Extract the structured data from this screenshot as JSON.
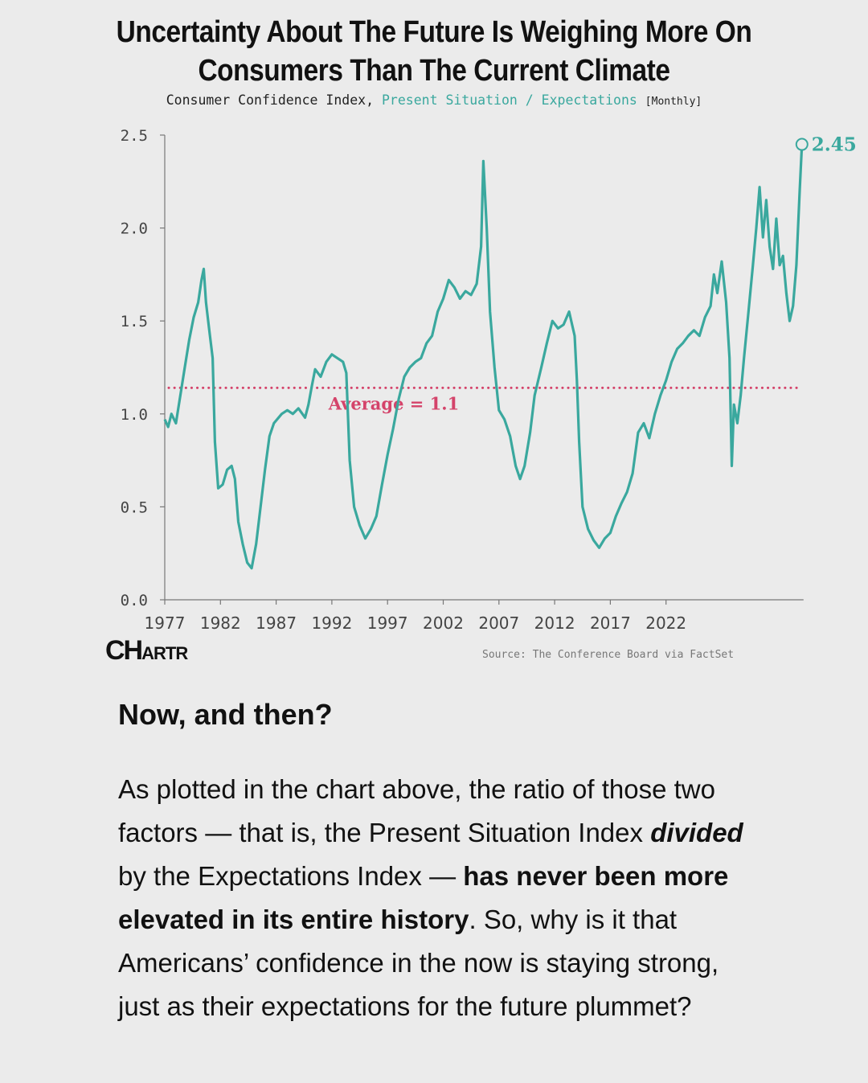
{
  "chart_data": {
    "type": "line",
    "title": "Uncertainty About The Future Is Weighing More On Consumers Than The Current Climate",
    "subtitle_prefix": "Consumer Confidence Index,",
    "subtitle_series": "Present Situation / Expectations",
    "subtitle_frequency": "[Monthly]",
    "ylim": [
      0,
      2.5
    ],
    "yticks": [
      0.0,
      0.5,
      1.0,
      1.5,
      2.0,
      2.5
    ],
    "ytick_labels": [
      "0.0",
      "0.5",
      "1.0",
      "1.5",
      "2.0",
      "2.5"
    ],
    "xticks": [
      "1977",
      "1982",
      "1987",
      "1992",
      "1997",
      "2002",
      "2007",
      "2012",
      "2017",
      "2022"
    ],
    "series": [
      {
        "color": "#3aa89e",
        "points": [
          [
            1977.0,
            0.97
          ],
          [
            1977.3,
            0.93
          ],
          [
            1977.6,
            1.0
          ],
          [
            1978.0,
            0.95
          ],
          [
            1978.4,
            1.1
          ],
          [
            1978.8,
            1.25
          ],
          [
            1979.2,
            1.4
          ],
          [
            1979.6,
            1.52
          ],
          [
            1980.0,
            1.6
          ],
          [
            1980.3,
            1.72
          ],
          [
            1980.5,
            1.78
          ],
          [
            1980.7,
            1.6
          ],
          [
            1981.0,
            1.45
          ],
          [
            1981.3,
            1.3
          ],
          [
            1981.5,
            0.85
          ],
          [
            1981.8,
            0.6
          ],
          [
            1982.2,
            0.62
          ],
          [
            1982.6,
            0.7
          ],
          [
            1983.0,
            0.72
          ],
          [
            1983.3,
            0.65
          ],
          [
            1983.6,
            0.42
          ],
          [
            1984.0,
            0.3
          ],
          [
            1984.4,
            0.2
          ],
          [
            1984.8,
            0.17
          ],
          [
            1985.2,
            0.3
          ],
          [
            1985.6,
            0.5
          ],
          [
            1986.0,
            0.7
          ],
          [
            1986.4,
            0.88
          ],
          [
            1986.8,
            0.95
          ],
          [
            1987.5,
            1.0
          ],
          [
            1988.0,
            1.02
          ],
          [
            1988.5,
            1.0
          ],
          [
            1989.0,
            1.03
          ],
          [
            1989.6,
            0.98
          ],
          [
            1989.9,
            1.05
          ],
          [
            1990.2,
            1.15
          ],
          [
            1990.5,
            1.24
          ],
          [
            1991.0,
            1.2
          ],
          [
            1991.5,
            1.28
          ],
          [
            1992.0,
            1.32
          ],
          [
            1992.5,
            1.3
          ],
          [
            1993.0,
            1.28
          ],
          [
            1993.3,
            1.22
          ],
          [
            1993.6,
            0.75
          ],
          [
            1994.0,
            0.5
          ],
          [
            1994.5,
            0.4
          ],
          [
            1995.0,
            0.33
          ],
          [
            1995.5,
            0.38
          ],
          [
            1996.0,
            0.45
          ],
          [
            1996.5,
            0.62
          ],
          [
            1997.0,
            0.78
          ],
          [
            1997.5,
            0.92
          ],
          [
            1998.0,
            1.08
          ],
          [
            1998.5,
            1.2
          ],
          [
            1999.0,
            1.25
          ],
          [
            1999.5,
            1.28
          ],
          [
            2000.0,
            1.3
          ],
          [
            2000.5,
            1.38
          ],
          [
            2001.0,
            1.42
          ],
          [
            2001.5,
            1.55
          ],
          [
            2002.0,
            1.62
          ],
          [
            2002.5,
            1.72
          ],
          [
            2003.0,
            1.68
          ],
          [
            2003.5,
            1.62
          ],
          [
            2004.0,
            1.66
          ],
          [
            2004.5,
            1.64
          ],
          [
            2005.0,
            1.7
          ],
          [
            2005.4,
            1.9
          ],
          [
            2005.6,
            2.36
          ],
          [
            2005.9,
            2.0
          ],
          [
            2006.2,
            1.55
          ],
          [
            2006.6,
            1.25
          ],
          [
            2007.0,
            1.02
          ],
          [
            2007.5,
            0.97
          ],
          [
            2008.0,
            0.88
          ],
          [
            2008.5,
            0.72
          ],
          [
            2008.9,
            0.65
          ],
          [
            2009.3,
            0.72
          ],
          [
            2009.8,
            0.9
          ],
          [
            2010.2,
            1.1
          ],
          [
            2010.8,
            1.25
          ],
          [
            2011.3,
            1.38
          ],
          [
            2011.8,
            1.5
          ],
          [
            2012.3,
            1.46
          ],
          [
            2012.8,
            1.48
          ],
          [
            2013.3,
            1.55
          ],
          [
            2013.8,
            1.42
          ],
          [
            2014.0,
            1.18
          ],
          [
            2014.2,
            0.85
          ],
          [
            2014.5,
            0.5
          ],
          [
            2015.0,
            0.38
          ],
          [
            2015.5,
            0.32
          ],
          [
            2016.0,
            0.28
          ],
          [
            2016.5,
            0.33
          ],
          [
            2017.0,
            0.36
          ],
          [
            2017.5,
            0.45
          ],
          [
            2018.0,
            0.52
          ],
          [
            2018.5,
            0.58
          ],
          [
            2019.0,
            0.68
          ],
          [
            2019.5,
            0.9
          ],
          [
            2020.0,
            0.95
          ],
          [
            2020.5,
            0.87
          ],
          [
            2021.0,
            1.0
          ],
          [
            2021.5,
            1.1
          ],
          [
            2022.0,
            1.18
          ],
          [
            2022.5,
            1.28
          ],
          [
            2023.0,
            1.35
          ],
          [
            2023.5,
            1.38
          ],
          [
            2024.0,
            1.42
          ],
          [
            2024.5,
            1.45
          ],
          [
            2025.0,
            1.42
          ],
          [
            2025.5,
            1.52
          ],
          [
            2026.0,
            1.58
          ],
          [
            2026.3,
            1.75
          ],
          [
            2026.6,
            1.65
          ],
          [
            2027.0,
            1.82
          ],
          [
            2027.4,
            1.6
          ],
          [
            2027.7,
            1.3
          ],
          [
            2027.9,
            0.72
          ],
          [
            2028.1,
            1.05
          ],
          [
            2028.4,
            0.95
          ],
          [
            2028.7,
            1.1
          ],
          [
            2029.0,
            1.3
          ],
          [
            2029.4,
            1.55
          ],
          [
            2029.8,
            1.8
          ],
          [
            2030.1,
            2.0
          ],
          [
            2030.4,
            2.22
          ],
          [
            2030.7,
            1.95
          ],
          [
            2031.0,
            2.15
          ],
          [
            2031.3,
            1.9
          ],
          [
            2031.6,
            1.78
          ],
          [
            2031.9,
            2.05
          ],
          [
            2032.2,
            1.8
          ],
          [
            2032.5,
            1.85
          ],
          [
            2032.8,
            1.65
          ],
          [
            2033.1,
            1.5
          ],
          [
            2033.4,
            1.58
          ],
          [
            2033.7,
            1.8
          ],
          [
            2034.0,
            2.2
          ],
          [
            2034.2,
            2.45
          ]
        ]
      }
    ],
    "reference_line": {
      "value": 1.14,
      "label": "Average = 1.1",
      "color": "#d4436a",
      "style": "dotted"
    },
    "end_label": "2.45",
    "grid": false,
    "legend": "none"
  },
  "branding": {
    "logo_text": "CHARTR"
  },
  "source": "Source: The Conference Board via FactSet",
  "article": {
    "heading": "Now, and then?",
    "p_part1": "As plotted in the chart above, the ratio of those two factors — that is, the Present Situation Index ",
    "p_em": "divided",
    "p_part2": " by the Expectations Index — ",
    "p_bold": "has never been more elevated in its entire history",
    "p_part3": ". So, why is it that Americans’ confidence in the now is staying strong, just as their expectations for the future plummet?"
  }
}
